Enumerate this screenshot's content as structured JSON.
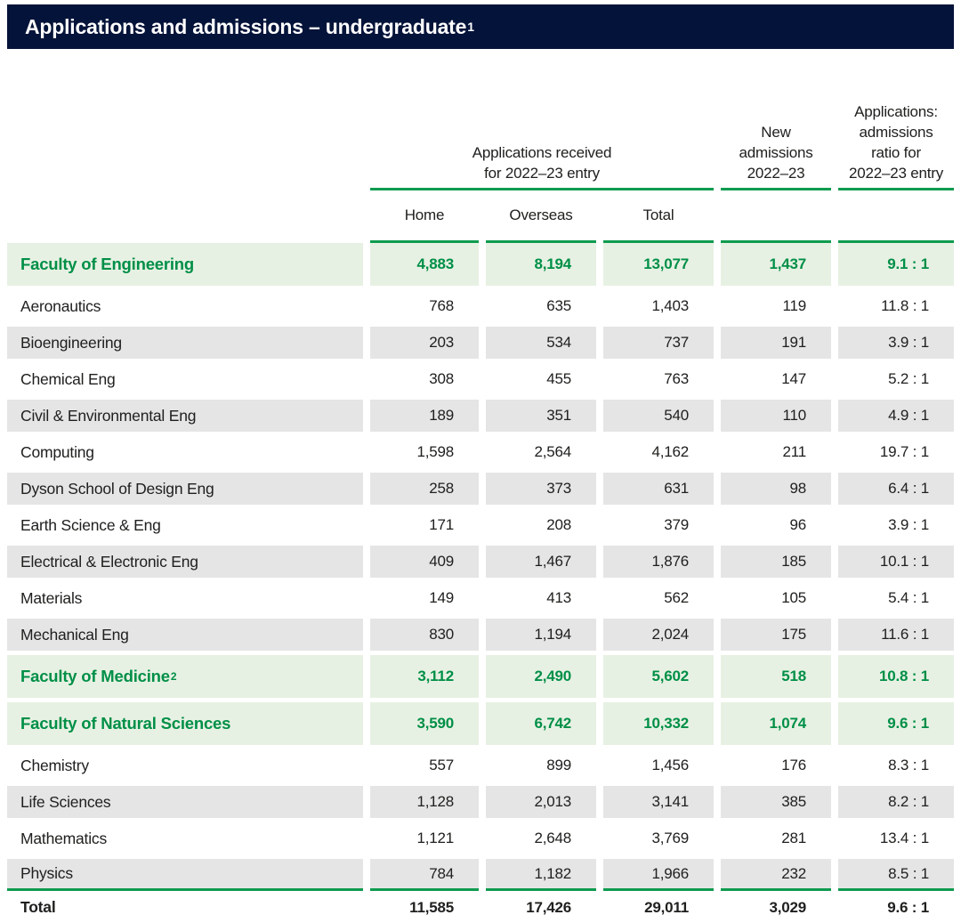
{
  "title": {
    "text": "Applications and admissions – undergraduate",
    "footnote": "1"
  },
  "colors": {
    "band_navy": "#041339",
    "green_text": "#008f47",
    "green_rule": "#0e9b4f",
    "faculty_row_bg": "#e7f1e3",
    "alt_row_bg": "#e5e5e6",
    "body_text": "#20201e"
  },
  "header": {
    "group": {
      "line1": "Applications received",
      "line2": "for 2022–23 entry"
    },
    "admissions": {
      "line1": "New",
      "line2": "admissions",
      "line3": "2022–23"
    },
    "ratio": {
      "line1": "Applications:",
      "line2": "admissions",
      "line3": "ratio for",
      "line4": "2022–23 entry"
    },
    "sub": {
      "home": "Home",
      "overseas": "Overseas",
      "total": "Total"
    }
  },
  "table": {
    "columns": [
      "Home",
      "Overseas",
      "Total",
      "New admissions 2022–23",
      "Applications: admissions ratio for 2022–23 entry"
    ],
    "rows": [
      {
        "label": "Faculty of Engineering",
        "type": "faculty",
        "home": "4,883",
        "overseas": "8,194",
        "total": "13,077",
        "admissions": "1,437",
        "ratio": "9.1 : 1"
      },
      {
        "label": "Aeronautics",
        "type": "department",
        "home": "768",
        "overseas": "635",
        "total": "1,403",
        "admissions": "119",
        "ratio": "11.8 : 1"
      },
      {
        "label": "Bioengineering",
        "type": "department",
        "home": "203",
        "overseas": "534",
        "total": "737",
        "admissions": "191",
        "ratio": "3.9 : 1"
      },
      {
        "label": "Chemical Eng",
        "type": "department",
        "home": "308",
        "overseas": "455",
        "total": "763",
        "admissions": "147",
        "ratio": "5.2 : 1"
      },
      {
        "label": "Civil & Environmental Eng",
        "type": "department",
        "home": "189",
        "overseas": "351",
        "total": "540",
        "admissions": "110",
        "ratio": "4.9 : 1"
      },
      {
        "label": "Computing",
        "type": "department",
        "home": "1,598",
        "overseas": "2,564",
        "total": "4,162",
        "admissions": "211",
        "ratio": "19.7 : 1"
      },
      {
        "label": "Dyson School of Design Eng",
        "type": "department",
        "home": "258",
        "overseas": "373",
        "total": "631",
        "admissions": "98",
        "ratio": "6.4 : 1"
      },
      {
        "label": "Earth Science & Eng",
        "type": "department",
        "home": "171",
        "overseas": "208",
        "total": "379",
        "admissions": "96",
        "ratio": "3.9 : 1"
      },
      {
        "label": "Electrical & Electronic Eng",
        "type": "department",
        "home": "409",
        "overseas": "1,467",
        "total": "1,876",
        "admissions": "185",
        "ratio": "10.1 : 1"
      },
      {
        "label": "Materials",
        "type": "department",
        "home": "149",
        "overseas": "413",
        "total": "562",
        "admissions": "105",
        "ratio": "5.4 : 1"
      },
      {
        "label": "Mechanical Eng",
        "type": "department",
        "home": "830",
        "overseas": "1,194",
        "total": "2,024",
        "admissions": "175",
        "ratio": "11.6 : 1"
      },
      {
        "label": "Faculty of Medicine",
        "footnote": "2",
        "type": "faculty",
        "home": "3,112",
        "overseas": "2,490",
        "total": "5,602",
        "admissions": "518",
        "ratio": "10.8 : 1"
      },
      {
        "label": "Faculty of Natural Sciences",
        "type": "faculty",
        "home": "3,590",
        "overseas": "6,742",
        "total": "10,332",
        "admissions": "1,074",
        "ratio": "9.6 : 1"
      },
      {
        "label": "Chemistry",
        "type": "department",
        "home": "557",
        "overseas": "899",
        "total": "1,456",
        "admissions": "176",
        "ratio": "8.3 : 1"
      },
      {
        "label": "Life Sciences",
        "type": "department",
        "home": "1,128",
        "overseas": "2,013",
        "total": "3,141",
        "admissions": "385",
        "ratio": "8.2 : 1"
      },
      {
        "label": "Mathematics",
        "type": "department",
        "home": "1,121",
        "overseas": "2,648",
        "total": "3,769",
        "admissions": "281",
        "ratio": "13.4 : 1"
      },
      {
        "label": "Physics",
        "type": "department",
        "home": "784",
        "overseas": "1,182",
        "total": "1,966",
        "admissions": "232",
        "ratio": "8.5 : 1"
      }
    ],
    "total_row": {
      "label": "Total",
      "home": "11,585",
      "overseas": "17,426",
      "total": "29,011",
      "admissions": "3,029",
      "ratio": "9.6 : 1"
    }
  }
}
